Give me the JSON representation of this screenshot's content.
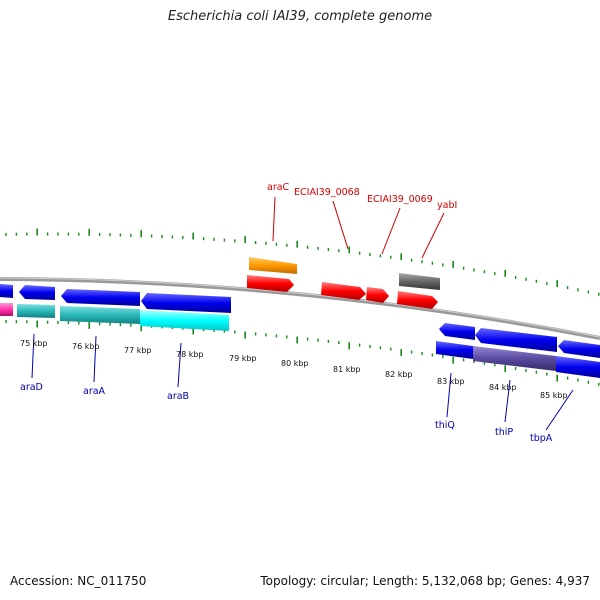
{
  "title": "Escherichia coli IAI39, complete genome",
  "footer": {
    "accession": "Accession: NC_011750",
    "summary": "Topology: circular; Length: 5,132,068 bp; Genes: 4,937"
  },
  "kbp_labels": [
    "75 kbp",
    "76 kbp",
    "77 kbp",
    "78 kbp",
    "79 kbp",
    "80 kbp",
    "81 kbp",
    "82 kbp",
    "83 kbp",
    "84 kbp",
    "85 kbp"
  ],
  "genes_top": [
    "araC",
    "ECIAI39_0068",
    "ECIAI39_0069",
    "yabI"
  ],
  "genes_bottom": [
    "araD",
    "araA",
    "araB",
    "thiQ",
    "thiP",
    "tbpA"
  ],
  "colors": {
    "backbone": "#8a8a8a",
    "tick": "#1a8a1a",
    "gene_forward": "#ff0000",
    "gene_reverse": "#0000ff",
    "araC": "#ff9900",
    "yabI": "#666666",
    "cds_cyan": "#00ffff",
    "cds_teal": "#2ab8b8",
    "cds_pink": "#ff33aa",
    "cds_purple": "#5a4aa0"
  }
}
